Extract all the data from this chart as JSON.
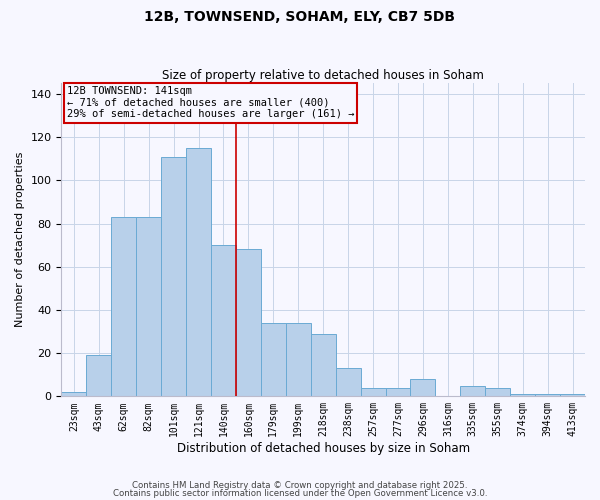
{
  "title": "12B, TOWNSEND, SOHAM, ELY, CB7 5DB",
  "subtitle": "Size of property relative to detached houses in Soham",
  "xlabel": "Distribution of detached houses by size in Soham",
  "ylabel": "Number of detached properties",
  "bar_labels": [
    "23sqm",
    "43sqm",
    "62sqm",
    "82sqm",
    "101sqm",
    "121sqm",
    "140sqm",
    "160sqm",
    "179sqm",
    "199sqm",
    "218sqm",
    "238sqm",
    "257sqm",
    "277sqm",
    "296sqm",
    "316sqm",
    "335sqm",
    "355sqm",
    "374sqm",
    "394sqm",
    "413sqm"
  ],
  "bar_values": [
    2,
    19,
    83,
    83,
    111,
    115,
    70,
    68,
    34,
    34,
    29,
    13,
    4,
    4,
    8,
    0,
    5,
    4,
    1,
    1,
    1
  ],
  "bar_color": "#b8d0ea",
  "bar_edge_color": "#6aaad4",
  "vline_x": 6.5,
  "vline_color": "#cc0000",
  "annotation_title": "12B TOWNSEND: 141sqm",
  "annotation_line1": "← 71% of detached houses are smaller (400)",
  "annotation_line2": "29% of semi-detached houses are larger (161) →",
  "annotation_box_color": "#cc0000",
  "ylim": [
    0,
    145
  ],
  "yticks": [
    0,
    20,
    40,
    60,
    80,
    100,
    120,
    140
  ],
  "footnote1": "Contains HM Land Registry data © Crown copyright and database right 2025.",
  "footnote2": "Contains public sector information licensed under the Open Government Licence v3.0.",
  "background_color": "#f7f7ff",
  "grid_color": "#c8d4e8"
}
